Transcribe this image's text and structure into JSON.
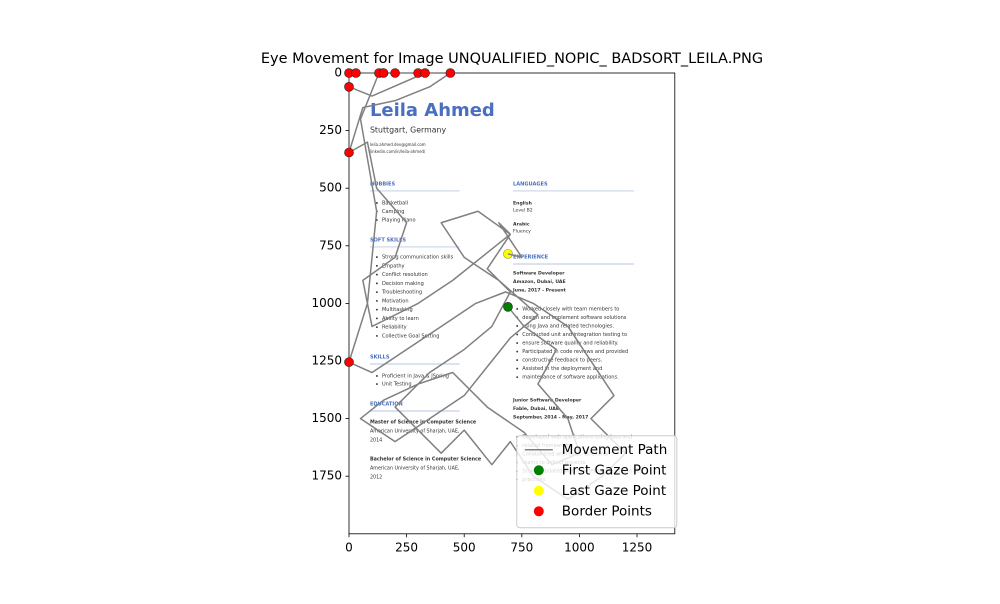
{
  "chart_data": {
    "type": "scatter",
    "title": "Eye Movement for Image UNQUALIFIED_NOPIC_ BADSORT_LEILA.PNG",
    "xlim": [
      0,
      1414
    ],
    "ylim": [
      2000,
      0
    ],
    "xticks": [
      0,
      250,
      500,
      750,
      1000,
      1250
    ],
    "yticks": [
      0,
      250,
      500,
      750,
      1000,
      1250,
      1500,
      1750
    ],
    "grid": false,
    "legend_position": "lower right",
    "series": [
      {
        "name": "Movement Path",
        "kind": "line",
        "color": "gray",
        "x": [
          690,
          760,
          900,
          820,
          950,
          1000,
          880,
          760,
          600,
          450,
          300,
          150,
          50,
          200,
          350,
          500,
          620,
          700,
          820,
          650,
          500,
          400,
          560,
          700,
          600,
          450,
          300,
          100,
          60,
          200,
          250,
          120,
          80,
          0,
          60,
          200,
          350,
          440,
          330,
          100,
          0,
          0,
          30,
          150,
          200,
          300,
          130,
          50,
          120,
          80,
          0,
          100,
          250,
          400,
          550,
          680,
          800,
          950,
          1050,
          1150,
          1050,
          1200,
          1100,
          950,
          800,
          700,
          620,
          500,
          400,
          300,
          200,
          350,
          500,
          620,
          700,
          600,
          700,
          650,
          750,
          690
        ],
        "y": [
          1015,
          1100,
          1200,
          1350,
          1500,
          1650,
          1700,
          1560,
          1450,
          1300,
          1350,
          1420,
          1500,
          1600,
          1500,
          1400,
          1250,
          1150,
          1050,
          900,
          800,
          650,
          600,
          700,
          780,
          900,
          1000,
          1100,
          900,
          800,
          650,
          500,
          300,
          345,
          150,
          120,
          60,
          0,
          0,
          100,
          60,
          0,
          0,
          0,
          0,
          0,
          0,
          200,
          600,
          1000,
          1255,
          1300,
          1200,
          1100,
          1000,
          950,
          1000,
          1100,
          1250,
          1400,
          1500,
          1650,
          1750,
          1850,
          1750,
          1600,
          1700,
          1550,
          1650,
          1550,
          1450,
          1300,
          1200,
          1100,
          950,
          850,
          700,
          650,
          800,
          785
        ]
      },
      {
        "name": "First Gaze Point",
        "kind": "point",
        "color": "green",
        "x": [
          690
        ],
        "y": [
          1015
        ]
      },
      {
        "name": "Last Gaze Point",
        "kind": "point",
        "color": "yellow",
        "x": [
          690
        ],
        "y": [
          785
        ]
      },
      {
        "name": "Border Points",
        "kind": "point",
        "color": "red",
        "x": [
          0,
          30,
          130,
          150,
          200,
          300,
          330,
          440,
          0,
          0,
          0
        ],
        "y": [
          0,
          0,
          0,
          0,
          0,
          0,
          0,
          0,
          60,
          345,
          1255
        ]
      }
    ]
  },
  "resume": {
    "name": "Leila Ahmed",
    "location": "Stuttgart, Germany",
    "contacts": [
      "leila.ahmed.dev@gmail.com",
      "linkedin.com/in/leila-ahmed/"
    ],
    "hobbies": {
      "heading": "HOBBIES",
      "items": [
        "Basketball",
        "Camping",
        "Playing Piano"
      ]
    },
    "soft_skills": {
      "heading": "SOFT SKILLS",
      "items": [
        "Strong communication skills",
        "Empathy",
        "Conflict resolution",
        "Decision making",
        "Troubleshooting",
        "Motivation",
        "Multitasking",
        "Ability to learn",
        "Reliability",
        "Collective Goal Setting"
      ]
    },
    "skills": {
      "heading": "SKILLS",
      "items": [
        "Proficient in Java & JSpring",
        "Unit Testing"
      ]
    },
    "education": {
      "heading": "EDUCATION",
      "lines": [
        "Master of Science in Computer Science",
        "American University of Sharjah, UAE,",
        "2014",
        "Bachelor of Science in Computer Science",
        "American University of Sharjah, UAE,",
        "2012"
      ]
    },
    "languages": {
      "heading": "LANGUAGES",
      "lines": [
        "English",
        "Level B2",
        "Arabic",
        "Fluency"
      ]
    },
    "experience": {
      "heading": "EXPERIENCE",
      "job1": [
        "Software Developer",
        "Amazon, Dubai, UAE",
        "June, 2017 - Present"
      ],
      "job1_text": [
        "Worked closely with team members to",
        "design and implement software solutions",
        "using Java and related technologies.",
        "Conducted unit and integration testing to",
        "ensure software quality and reliability.",
        "Participated in code reviews and provided",
        "constructive feedback to peers.",
        "Assisted in the deployment and",
        "maintenance of software applications."
      ],
      "job2": [
        "Junior Software Developer",
        "Fable, Dubai, UAE",
        "September, 2014 - May, 2017"
      ],
      "job2_text": [
        "Developed web applications using Java and",
        "related frameworks.",
        "Collaborated with cross-functional",
        "teams to deliver projects.",
        "Stayed updated with new technologies and best",
        "practices."
      ]
    }
  }
}
